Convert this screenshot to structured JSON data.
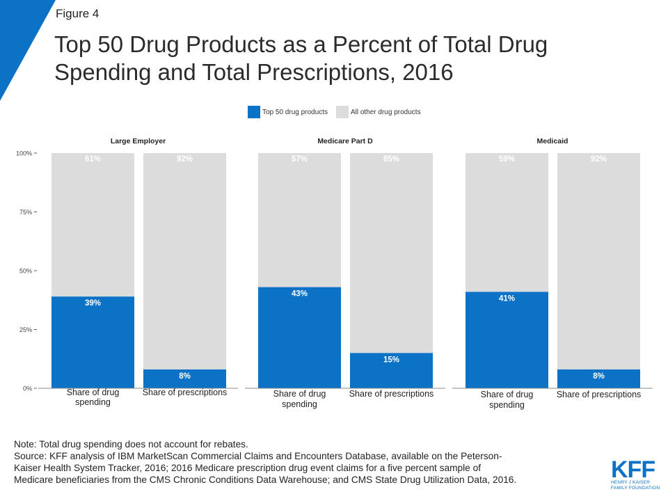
{
  "figure_label": "Figure 4",
  "title_line1": "Top 50 Drug Products as a Percent of Total Drug",
  "title_line2": "Spending and Total Prescriptions, 2016",
  "colors": {
    "top50": "#0b72c5",
    "other": "#dcdcdc",
    "accent": "#0b72c5"
  },
  "chart_data": {
    "type": "bar",
    "stacked": true,
    "legend": [
      "Top 50 drug products",
      "All other drug products"
    ],
    "legend_position": "top",
    "ylim": [
      0,
      100
    ],
    "yticks": [
      "0%",
      "25%",
      "50%",
      "75%",
      "100%"
    ],
    "panels": [
      {
        "name": "Large Employer",
        "categories": [
          "Share of drug spending",
          "Share of prescriptions"
        ],
        "series": [
          {
            "name": "Top 50 drug products",
            "values": [
              39,
              8
            ],
            "labels": [
              "39%",
              "8%"
            ]
          },
          {
            "name": "All other drug products",
            "values": [
              61,
              92
            ],
            "labels": [
              "61%",
              "92%"
            ]
          }
        ]
      },
      {
        "name": "Medicare Part D",
        "categories": [
          "Share of drug spending",
          "Share of prescriptions"
        ],
        "series": [
          {
            "name": "Top 50 drug products",
            "values": [
              43,
              15
            ],
            "labels": [
              "43%",
              "15%"
            ]
          },
          {
            "name": "All other drug products",
            "values": [
              57,
              85
            ],
            "labels": [
              "57%",
              "85%"
            ]
          }
        ]
      },
      {
        "name": "Medicaid",
        "categories": [
          "Share of drug spending",
          "Share of prescriptions"
        ],
        "series": [
          {
            "name": "Top 50 drug products",
            "values": [
              41,
              8
            ],
            "labels": [
              "41%",
              "8%"
            ]
          },
          {
            "name": "All other drug products",
            "values": [
              59,
              92
            ],
            "labels": [
              "59%",
              "92%"
            ]
          }
        ]
      }
    ]
  },
  "notes": [
    "Note: Total drug spending does not account for rebates.",
    "Source: KFF analysis of IBM MarketScan Commercial Claims and Encounters  Database, available on the Peterson-",
    "Kaiser Health System Tracker, 2016; 2016 Medicare prescription drug event claims for a five percent sample of",
    "Medicare beneficiaries from the CMS Chronic Conditions Data Warehouse;  and CMS State Drug Utilization Data, 2016."
  ],
  "logo": {
    "text": "KFF",
    "sub1": "HENRY J KAISER",
    "sub2": "FAMILY FOUNDATION"
  }
}
